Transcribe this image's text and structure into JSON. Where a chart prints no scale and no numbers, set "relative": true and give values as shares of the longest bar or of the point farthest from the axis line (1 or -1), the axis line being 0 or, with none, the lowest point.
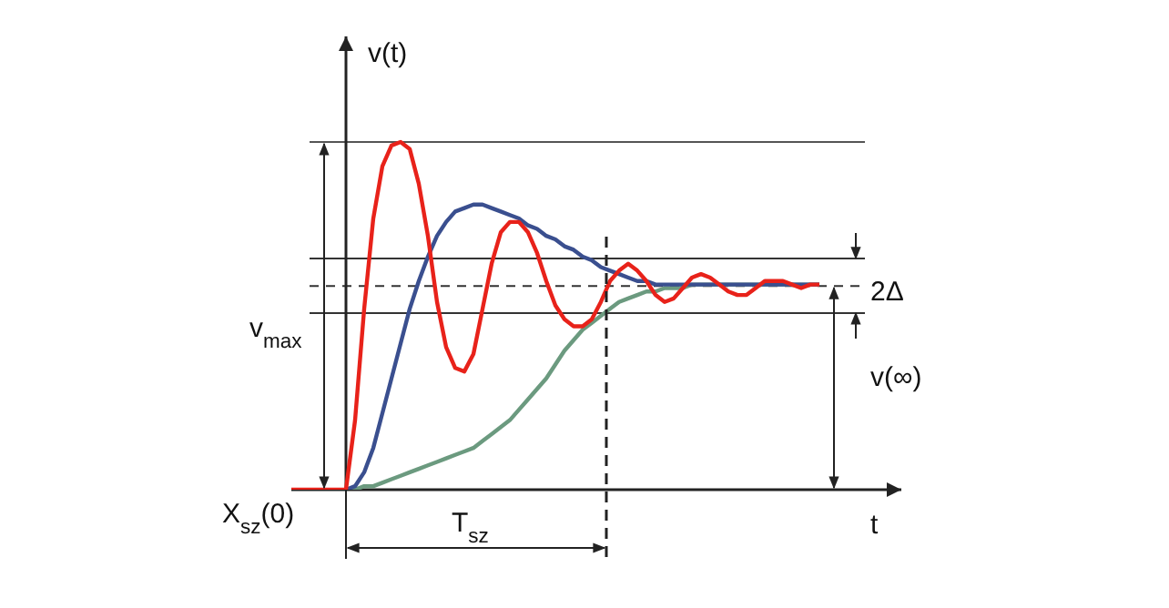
{
  "chart_data": {
    "type": "line",
    "relative": true,
    "xlabel": "t",
    "ylabel": "v(t)",
    "marker": "none",
    "categories": [
      null,
      null,
      null,
      null,
      null,
      null,
      null,
      null,
      null,
      null,
      null,
      null,
      null,
      null,
      null,
      null,
      null,
      null,
      null,
      null,
      null,
      null,
      null,
      null,
      null,
      null,
      null,
      null,
      null,
      null,
      null,
      null,
      null,
      null,
      null,
      null,
      null,
      null,
      null,
      null,
      null,
      null,
      null,
      null,
      null,
      null,
      null,
      null,
      null,
      null,
      null,
      null,
      null,
      null,
      null,
      null,
      null,
      null,
      null
    ],
    "series": [
      {
        "color": "#6b9a7f",
        "values": [
          null,
          null,
          null,
          null,
          null,
          null,
          0,
          0,
          0.01,
          0.01,
          0.02,
          0.03,
          0.04,
          0.05,
          0.06,
          0.07,
          0.08,
          0.09,
          0.1,
          0.11,
          0.12,
          0.14,
          0.16,
          0.18,
          0.2,
          0.23,
          0.26,
          0.29,
          0.32,
          0.36,
          0.4,
          0.43,
          0.46,
          0.48,
          0.5,
          0.52,
          0.54,
          0.55,
          0.56,
          0.57,
          0.57,
          0.58,
          0.58,
          0.58,
          0.59,
          0.59,
          0.59,
          0.59,
          0.59,
          0.59,
          0.59,
          0.59,
          0.59,
          0.59,
          0.59,
          0.59,
          0.59,
          0.59,
          0.59
        ]
      },
      {
        "color": "#3a4f8f",
        "values": [
          null,
          null,
          null,
          null,
          null,
          null,
          0,
          0.01,
          0.05,
          0.12,
          0.22,
          0.32,
          0.42,
          0.52,
          0.6,
          0.67,
          0.73,
          0.77,
          0.8,
          0.81,
          0.82,
          0.82,
          0.81,
          0.8,
          0.79,
          0.78,
          0.76,
          0.75,
          0.73,
          0.72,
          0.7,
          0.69,
          0.67,
          0.66,
          0.64,
          0.63,
          0.62,
          0.61,
          0.6,
          0.6,
          0.59,
          0.59,
          0.59,
          0.59,
          0.59,
          0.59,
          0.59,
          0.59,
          0.59,
          0.59,
          0.59,
          0.59,
          0.59,
          0.59,
          0.59,
          0.59,
          0.59,
          0.59,
          0.59
        ]
      },
      {
        "color": "#e8221a",
        "values": [
          0,
          0,
          0,
          0,
          0,
          0,
          0,
          0.2,
          0.52,
          0.78,
          0.93,
          0.99,
          1,
          0.98,
          0.88,
          0.73,
          0.54,
          0.41,
          0.35,
          0.34,
          0.39,
          0.52,
          0.65,
          0.74,
          0.77,
          0.77,
          0.74,
          0.68,
          0.6,
          0.53,
          0.49,
          0.47,
          0.47,
          0.49,
          0.54,
          0.6,
          0.63,
          0.65,
          0.63,
          0.6,
          0.56,
          0.54,
          0.55,
          0.58,
          0.61,
          0.62,
          0.61,
          0.59,
          0.57,
          0.56,
          0.56,
          0.58,
          0.6,
          0.6,
          0.6,
          0.59,
          0.58,
          0.59,
          0.59
        ]
      }
    ],
    "ref_lines": [
      {
        "axis": "y",
        "value": 1,
        "color": "#555555"
      },
      {
        "axis": "y",
        "value": 0.665,
        "color": "#333333"
      },
      {
        "axis": "y",
        "value": 0.508,
        "color": "#333333"
      },
      {
        "axis": "y",
        "value": 0.586,
        "color": "#333333",
        "line_style": "dashed"
      }
    ],
    "annotations": [
      "v$_{max}$",
      "X$_{sz}$(0)",
      "T$_{sz}$",
      "v(∞)",
      "2Δ"
    ]
  }
}
